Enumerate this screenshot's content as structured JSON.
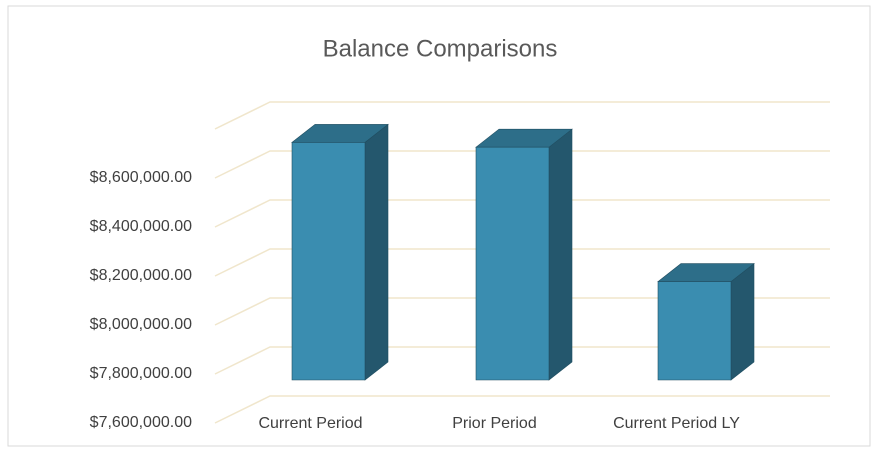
{
  "chart_data": {
    "type": "bar3d",
    "title": "Balance Comparisons",
    "categories": [
      "Current Period",
      "Prior Period",
      "Current Period LY"
    ],
    "values": [
      8590000,
      8570000,
      8010000
    ],
    "color": "#3a8db0",
    "ylim": [
      7600000,
      8800000
    ],
    "yticks": [
      {
        "value": 7600000,
        "label": "$7,600,000.00"
      },
      {
        "value": 7800000,
        "label": "$7,800,000.00"
      },
      {
        "value": 8000000,
        "label": "$8,000,000.00"
      },
      {
        "value": 8200000,
        "label": "$8,200,000.00"
      },
      {
        "value": 8400000,
        "label": "$8,400,000.00"
      },
      {
        "value": 8600000,
        "label": "$8,600,000.00"
      }
    ],
    "grid": true
  }
}
